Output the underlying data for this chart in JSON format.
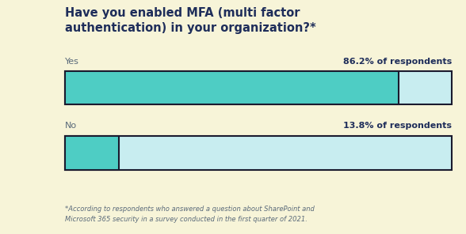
{
  "title_line1": "Have you enabled MFA (multi factor",
  "title_line2": "authentication) in your organization?*",
  "background_color": "#f7f4d8",
  "categories": [
    "Yes",
    "No"
  ],
  "values": [
    86.2,
    13.8
  ],
  "labels": [
    "86.2% of respondents",
    "13.8% of respondents"
  ],
  "bar_fill_color": "#4ecdc4",
  "bar_remainder_color": "#c8edf0",
  "bar_edge_color": "#1a1a2e",
  "title_color": "#1e2d5a",
  "label_color": "#1e2d5a",
  "category_color": "#5a6a7a",
  "footnote": "*According to respondents who answered a question about SharePoint and\nMicrosoft 365 security in a survey conducted in the first quarter of 2021.",
  "footnote_color": "#5a6a7a",
  "bar_linewidth": 1.5,
  "title_fontsize": 10.5,
  "label_fontsize": 8.0,
  "cat_fontsize": 8.0,
  "footnote_fontsize": 6.0
}
